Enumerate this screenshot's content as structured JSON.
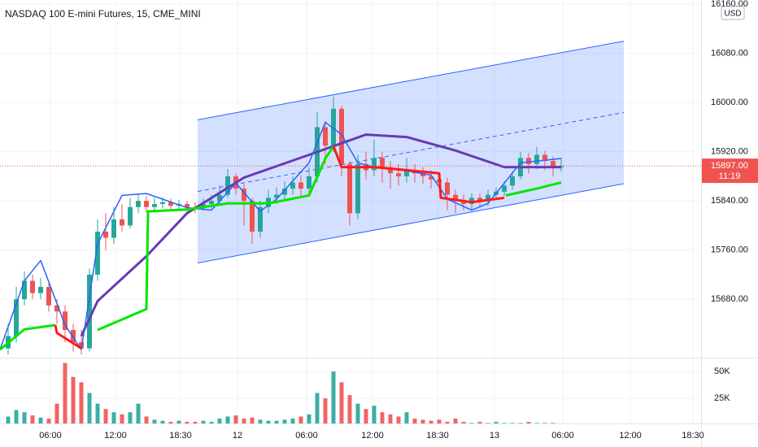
{
  "chart_data": {
    "type": "candlestick",
    "title": "NASDAQ 100 E-mini Futures, 15, CME_MINI",
    "currency": "USD",
    "last_price": {
      "value": 15897,
      "label": "15897.00"
    },
    "countdown": "11:19",
    "up_color": "#26a69a",
    "down_color": "#ef5350",
    "xlim": [
      0,
      86.2
    ],
    "ylim": [
      15585,
      16167
    ],
    "vlim": [
      0,
      60000
    ],
    "grid": true,
    "xticks": [
      {
        "value": 6.2,
        "label": "06:00"
      },
      {
        "value": 14.2,
        "label": "12:00"
      },
      {
        "value": 22.2,
        "label": "18:30"
      },
      {
        "value": 29.2,
        "label": "12"
      },
      {
        "value": 37.7,
        "label": "06:00"
      },
      {
        "value": 45.8,
        "label": "12:00"
      },
      {
        "value": 53.8,
        "label": "18:30"
      },
      {
        "value": 60.8,
        "label": "13"
      },
      {
        "value": 69.2,
        "label": "06:00"
      },
      {
        "value": 77.5,
        "label": "12:00"
      },
      {
        "value": 85.2,
        "label": "18:30"
      }
    ],
    "yticks": [
      {
        "value": 16160,
        "label": "16160.00"
      },
      {
        "value": 16080,
        "label": "16080.00"
      },
      {
        "value": 16000,
        "label": "16000.00"
      },
      {
        "value": 15920,
        "label": "15920.00"
      },
      {
        "value": 15840,
        "label": "15840.00"
      },
      {
        "value": 15760,
        "label": "15760.00"
      },
      {
        "value": 15680,
        "label": "15680.00"
      }
    ],
    "vticks": [
      {
        "value": 50000,
        "label": "50K"
      },
      {
        "value": 25000,
        "label": "25K"
      }
    ],
    "x": [
      1,
      2,
      3,
      4,
      5,
      6,
      7,
      8,
      9,
      10,
      11,
      12,
      13,
      14,
      15,
      16,
      17,
      18,
      19,
      20,
      21,
      22,
      23,
      24,
      25,
      26,
      27,
      28,
      29,
      30,
      31,
      32,
      33,
      34,
      35,
      36,
      37,
      38,
      39,
      40,
      41,
      42,
      43,
      44,
      45,
      46,
      47,
      48,
      49,
      50,
      51,
      52,
      53,
      54,
      55,
      56,
      57,
      58,
      59,
      60,
      61,
      62,
      63,
      64,
      65,
      66,
      67,
      68,
      69
    ],
    "open": [
      15600,
      15620,
      15680,
      15710,
      15690,
      15700,
      15670,
      15660,
      15630,
      15610,
      15600,
      15720,
      15790,
      15780,
      15810,
      15800,
      15830,
      15840,
      15830,
      15835,
      15838,
      15832,
      15835,
      15830,
      15828,
      15835,
      15840,
      15850,
      15880,
      15860,
      15840,
      15790,
      15830,
      15845,
      15850,
      15860,
      15870,
      15860,
      15880,
      15960,
      15930,
      15990,
      15900,
      15820,
      15900,
      15890,
      15910,
      15895,
      15885,
      15880,
      15890,
      15885,
      15880,
      15875,
      15870,
      15850,
      15840,
      15835,
      15845,
      15840,
      15850,
      15855,
      15865,
      15880,
      15910,
      15900,
      15915,
      15905,
      15895
    ],
    "high": [
      15640,
      15700,
      15725,
      15720,
      15715,
      15710,
      15680,
      15670,
      15640,
      15630,
      15730,
      15810,
      15820,
      15830,
      15835,
      15845,
      15850,
      15848,
      15845,
      15846,
      15844,
      15842,
      15840,
      15838,
      15844,
      15850,
      15865,
      15892,
      15885,
      15868,
      15845,
      15840,
      15858,
      15862,
      15872,
      15880,
      15882,
      15895,
      15985,
      15970,
      16010,
      15995,
      15905,
      15915,
      15920,
      15940,
      15920,
      15905,
      15900,
      15910,
      15900,
      15895,
      15890,
      15885,
      15878,
      15858,
      15850,
      15852,
      15852,
      15858,
      15862,
      15872,
      15888,
      15920,
      15918,
      15928,
      15922,
      15912,
      15910
    ],
    "low": [
      15590,
      15610,
      15670,
      15680,
      15680,
      15660,
      15640,
      15610,
      15595,
      15590,
      15595,
      15710,
      15760,
      15770,
      15790,
      15795,
      15820,
      15822,
      15825,
      15828,
      15826,
      15826,
      15822,
      15820,
      15824,
      15828,
      15835,
      15845,
      15850,
      15800,
      15770,
      15780,
      15820,
      15835,
      15840,
      15850,
      15848,
      15852,
      15870,
      15900,
      15920,
      15880,
      15800,
      15810,
      15875,
      15880,
      15870,
      15860,
      15865,
      15870,
      15870,
      15868,
      15860,
      15860,
      15825,
      15820,
      15825,
      15826,
      15830,
      15832,
      15842,
      15848,
      15858,
      15875,
      15885,
      15892,
      15890,
      15880,
      15888
    ],
    "close": [
      15620,
      15680,
      15710,
      15690,
      15700,
      15670,
      15660,
      15630,
      15610,
      15600,
      15720,
      15790,
      15780,
      15810,
      15800,
      15830,
      15840,
      15830,
      15835,
      15838,
      15832,
      15835,
      15830,
      15828,
      15835,
      15840,
      15850,
      15880,
      15860,
      15840,
      15790,
      15830,
      15845,
      15850,
      15860,
      15870,
      15860,
      15880,
      15960,
      15930,
      15990,
      15900,
      15820,
      15900,
      15890,
      15910,
      15895,
      15885,
      15880,
      15890,
      15885,
      15880,
      15875,
      15870,
      15850,
      15840,
      15835,
      15845,
      15840,
      15850,
      15855,
      15865,
      15880,
      15910,
      15900,
      15915,
      15905,
      15895,
      15897
    ],
    "volume": [
      8000,
      14000,
      12000,
      9000,
      7000,
      6000,
      20000,
      58000,
      45000,
      40000,
      30000,
      20000,
      15000,
      12000,
      10000,
      12000,
      20000,
      8000,
      5000,
      4000,
      3000,
      4000,
      3000,
      3000,
      4000,
      3000,
      6000,
      8000,
      9000,
      6000,
      7000,
      5000,
      4000,
      4000,
      5000,
      6000,
      8000,
      10000,
      30000,
      25000,
      50000,
      40000,
      28000,
      20000,
      15000,
      18000,
      12000,
      10000,
      8000,
      12000,
      6000,
      5000,
      4000,
      5000,
      3000,
      6000,
      3000,
      2000,
      3000,
      2000,
      3000,
      2000,
      2000,
      2000,
      3000,
      2000,
      2000,
      2000,
      1000
    ],
    "channel": {
      "x": [
        24.3,
        76.7
      ],
      "upper": [
        15972,
        16100
      ],
      "lower": [
        15739,
        15868
      ],
      "color": "#2962ff"
    },
    "lines": [
      {
        "color": "#673ab7",
        "width": 3,
        "x": [
          10,
          12,
          18,
          23,
          30,
          38,
          45,
          50,
          56,
          62,
          69
        ],
        "values": [
          15620,
          15677,
          15750,
          15820,
          15878,
          15915,
          15948,
          15944,
          15922,
          15895,
          15895
        ]
      },
      {
        "color": "#2962ff",
        "width": 1.5,
        "x": [
          0,
          3,
          5,
          8,
          10,
          12,
          15,
          18,
          23,
          26,
          29,
          32,
          34,
          38,
          40,
          42,
          44,
          46,
          50,
          53,
          55,
          58,
          60,
          62,
          64,
          69
        ],
        "values": [
          15598,
          15710,
          15743,
          15638,
          15598,
          15770,
          15849,
          15852,
          15829,
          15825,
          15869,
          15823,
          15843,
          15902,
          15968,
          15948,
          15902,
          15895,
          15889,
          15882,
          15843,
          15825,
          15836,
          15869,
          15902,
          15909
        ]
      },
      {
        "color": "#00e600",
        "width": 3,
        "x": [
          0,
          3,
          6.8,
          7,
          10,
          12,
          18,
          18.2,
          23,
          28,
          33,
          38,
          40,
          41,
          42,
          46,
          50,
          54,
          54.2,
          58,
          62,
          62.2,
          66,
          69
        ],
        "values": [
          15598,
          15631,
          15638,
          null,
          null,
          15630,
          15664,
          15823,
          15826,
          15836,
          15836,
          15849,
          15909,
          15929,
          null,
          null,
          null,
          null,
          null,
          null,
          null,
          15849,
          15860,
          15870
        ]
      },
      {
        "color": "#ff1a1a",
        "width": 3,
        "x": [
          0,
          3,
          6.8,
          7,
          10,
          12,
          18,
          18.2,
          23,
          28,
          33,
          38,
          40,
          41,
          42,
          46,
          50,
          54,
          54.2,
          58,
          62,
          62.2,
          66,
          69
        ],
        "values": [
          null,
          null,
          15638,
          15625,
          15600,
          null,
          null,
          null,
          null,
          null,
          null,
          null,
          null,
          15929,
          15895,
          15895,
          15890,
          15885,
          15845,
          15838,
          15845,
          null,
          null,
          null
        ]
      }
    ]
  }
}
